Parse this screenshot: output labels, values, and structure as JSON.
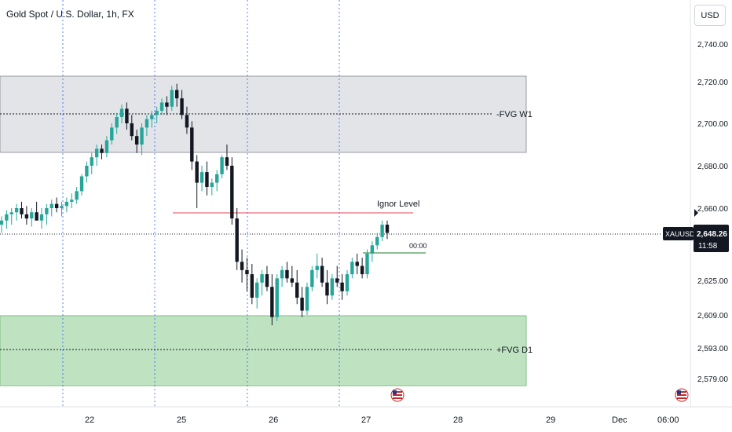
{
  "header": {
    "title": "Gold Spot / U.S. Dollar, 1h, FX",
    "currency": "USD"
  },
  "colors": {
    "up": "#26a69a",
    "down": "#131722",
    "fvg_w1_fill": "#e3e4e8",
    "fvg_d1_fill": "#bfe3c1",
    "ignore_level": "#e0455a",
    "projection": "#6aa86e",
    "price_label_bg": "#131722",
    "grid": "#2962ff"
  },
  "chart_data": {
    "type": "candlestick",
    "symbol": "XAUUSD",
    "timeframe": "1h",
    "x_ticks": [
      "22",
      "25",
      "26",
      "27",
      "28",
      "29",
      "Dec",
      "06:00"
    ],
    "y_ticks": [
      "2,740.00",
      "2,720.00",
      "2,700.00",
      "2,680.00",
      "2,660.00",
      "2,625.00",
      "2,609.00",
      "2,593.00",
      "2,579.00"
    ],
    "last_price": {
      "symbol_label": "XAUUSD",
      "price": "2,648.26",
      "countdown": "11:58"
    },
    "zones": [
      {
        "label": "-FVG W1",
        "top": 2724,
        "bottom": 2690,
        "midline": 2708
      },
      {
        "label": "+FVG D1",
        "top": 2608,
        "bottom": 2577,
        "midline": 2593
      }
    ],
    "levels": [
      {
        "label": "Ignor Level",
        "price": 2660
      },
      {
        "label": "00:00",
        "price": 2640
      }
    ],
    "candles": [
      [
        2652,
        2656,
        2648,
        2654
      ],
      [
        2654,
        2659,
        2650,
        2657
      ],
      [
        2657,
        2660,
        2652,
        2658
      ],
      [
        2658,
        2662,
        2654,
        2660
      ],
      [
        2660,
        2663,
        2655,
        2657
      ],
      [
        2657,
        2661,
        2652,
        2655
      ],
      [
        2655,
        2660,
        2651,
        2658
      ],
      [
        2658,
        2663,
        2654,
        2654
      ],
      [
        2654,
        2660,
        2650,
        2657
      ],
      [
        2657,
        2662,
        2652,
        2660
      ],
      [
        2660,
        2664,
        2656,
        2662
      ],
      [
        2662,
        2665,
        2658,
        2660
      ],
      [
        2660,
        2663,
        2656,
        2661
      ],
      [
        2661,
        2665,
        2658,
        2663
      ],
      [
        2663,
        2667,
        2660,
        2664
      ],
      [
        2664,
        2670,
        2662,
        2668
      ],
      [
        2668,
        2676,
        2666,
        2675
      ],
      [
        2675,
        2682,
        2672,
        2680
      ],
      [
        2680,
        2686,
        2676,
        2684
      ],
      [
        2684,
        2690,
        2680,
        2688
      ],
      [
        2688,
        2690,
        2683,
        2686
      ],
      [
        2686,
        2694,
        2684,
        2692
      ],
      [
        2692,
        2700,
        2690,
        2698
      ],
      [
        2698,
        2705,
        2695,
        2703
      ],
      [
        2703,
        2709,
        2700,
        2707
      ],
      [
        2707,
        2710,
        2697,
        2700
      ],
      [
        2700,
        2704,
        2692,
        2694
      ],
      [
        2694,
        2697,
        2686,
        2690
      ],
      [
        2690,
        2700,
        2685,
        2698
      ],
      [
        2698,
        2704,
        2694,
        2702
      ],
      [
        2702,
        2706,
        2698,
        2704
      ],
      [
        2704,
        2708,
        2700,
        2706
      ],
      [
        2706,
        2712,
        2704,
        2710
      ],
      [
        2710,
        2713,
        2704,
        2708
      ],
      [
        2708,
        2718,
        2706,
        2716
      ],
      [
        2716,
        2719,
        2708,
        2712
      ],
      [
        2712,
        2716,
        2702,
        2704
      ],
      [
        2704,
        2708,
        2695,
        2698
      ],
      [
        2698,
        2701,
        2678,
        2682
      ],
      [
        2682,
        2685,
        2660,
        2672
      ],
      [
        2672,
        2680,
        2668,
        2677
      ],
      [
        2677,
        2682,
        2666,
        2670
      ],
      [
        2670,
        2674,
        2666,
        2672
      ],
      [
        2672,
        2678,
        2668,
        2676
      ],
      [
        2676,
        2685,
        2674,
        2684
      ],
      [
        2684,
        2690,
        2678,
        2680
      ],
      [
        2680,
        2684,
        2652,
        2655
      ],
      [
        2655,
        2660,
        2630,
        2634
      ],
      [
        2634,
        2640,
        2624,
        2630
      ],
      [
        2630,
        2636,
        2620,
        2628
      ],
      [
        2628,
        2633,
        2614,
        2617
      ],
      [
        2617,
        2626,
        2612,
        2624
      ],
      [
        2624,
        2630,
        2618,
        2628
      ],
      [
        2628,
        2632,
        2620,
        2622
      ],
      [
        2622,
        2628,
        2604,
        2608
      ],
      [
        2608,
        2628,
        2606,
        2626
      ],
      [
        2626,
        2632,
        2622,
        2630
      ],
      [
        2630,
        2634,
        2624,
        2626
      ],
      [
        2626,
        2632,
        2622,
        2624
      ],
      [
        2624,
        2630,
        2614,
        2617
      ],
      [
        2617,
        2622,
        2608,
        2611
      ],
      [
        2611,
        2624,
        2609,
        2622
      ],
      [
        2622,
        2632,
        2620,
        2630
      ],
      [
        2630,
        2638,
        2626,
        2632
      ],
      [
        2632,
        2636,
        2622,
        2624
      ],
      [
        2624,
        2630,
        2614,
        2618
      ],
      [
        2618,
        2628,
        2616,
        2626
      ],
      [
        2626,
        2632,
        2622,
        2624
      ],
      [
        2624,
        2628,
        2616,
        2620
      ],
      [
        2620,
        2630,
        2618,
        2628
      ],
      [
        2628,
        2636,
        2626,
        2634
      ],
      [
        2634,
        2638,
        2628,
        2632
      ],
      [
        2632,
        2636,
        2626,
        2628
      ],
      [
        2628,
        2640,
        2626,
        2638
      ],
      [
        2638,
        2644,
        2634,
        2642
      ],
      [
        2642,
        2648,
        2640,
        2646
      ],
      [
        2646,
        2654,
        2644,
        2652
      ],
      [
        2652,
        2654,
        2645,
        2648
      ]
    ]
  }
}
